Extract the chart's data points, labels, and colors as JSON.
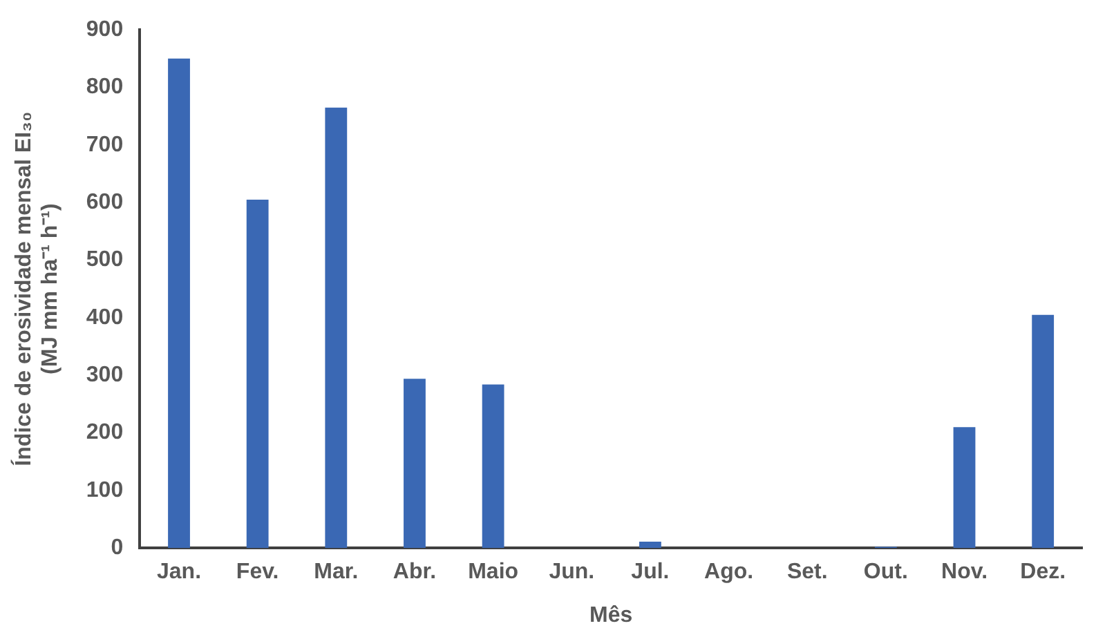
{
  "chart_data": {
    "type": "bar",
    "xlabel": "Mês",
    "ylabel": "Índice de erosividade mensal EI₃₀\n(MJ mm ha⁻¹ h⁻¹)",
    "categories": [
      "Jan.",
      "Fev.",
      "Mar.",
      "Abr.",
      "Maio",
      "Jun.",
      "Jul.",
      "Ago.",
      "Set.",
      "Out.",
      "Nov.",
      "Dez."
    ],
    "values": [
      850,
      605,
      765,
      294,
      284,
      0,
      11,
      0,
      0,
      2,
      210,
      405
    ],
    "color": "#3a68b4",
    "ylim": [
      0,
      900
    ],
    "yticks": [
      0,
      100,
      200,
      300,
      400,
      500,
      600,
      700,
      800,
      900
    ],
    "grid": false,
    "legend": false
  }
}
